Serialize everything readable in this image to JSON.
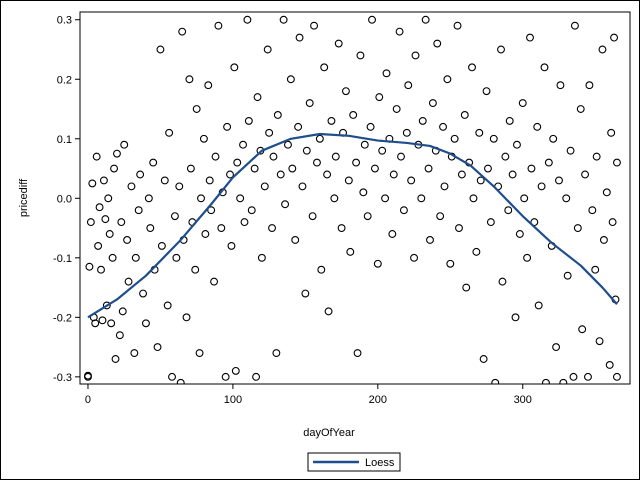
{
  "chart_data": {
    "type": "scatter",
    "xlabel": "dayOfYear",
    "ylabel": "pricediff",
    "xlim": [
      -5.5,
      374
    ],
    "ylim": [
      -0.312,
      0.313
    ],
    "xticks": [
      0,
      100,
      200,
      300
    ],
    "xtick_labels": [
      "0",
      "100",
      "200",
      "300"
    ],
    "yticks": [
      -0.3,
      -0.2,
      -0.1,
      0.0,
      0.1,
      0.2,
      0.3
    ],
    "ytick_labels": [
      "-0.3",
      "-0.2",
      "-0.1",
      "0.0",
      "0.1",
      "0.2",
      "0.3"
    ],
    "grid": false,
    "legend": {
      "placement": "bottom",
      "entries": [
        "Loess"
      ]
    },
    "colors": {
      "points": "#000000",
      "loess": "#1f4e8c"
    },
    "loess": {
      "name": "Loess",
      "x": [
        0,
        20,
        40,
        64,
        85,
        100,
        120,
        140,
        160,
        180,
        200,
        220,
        236,
        250,
        264,
        280,
        300,
        320,
        340,
        355,
        365
      ],
      "y": [
        -0.2,
        -0.17,
        -0.13,
        -0.07,
        -0.01,
        0.035,
        0.08,
        0.1,
        0.108,
        0.105,
        0.097,
        0.093,
        0.088,
        0.075,
        0.055,
        0.02,
        -0.03,
        -0.075,
        -0.113,
        -0.15,
        -0.178
      ]
    },
    "points": [
      [
        0,
        -0.3
      ],
      [
        0,
        -0.298
      ],
      [
        1,
        -0.115
      ],
      [
        2,
        -0.04
      ],
      [
        3,
        0.025
      ],
      [
        4,
        -0.2
      ],
      [
        5,
        -0.21
      ],
      [
        6,
        0.07
      ],
      [
        7,
        -0.08
      ],
      [
        8,
        -0.015
      ],
      [
        9,
        -0.12
      ],
      [
        10,
        -0.205
      ],
      [
        11,
        0.03
      ],
      [
        12,
        -0.035
      ],
      [
        13,
        -0.18
      ],
      [
        14,
        0.0
      ],
      [
        15,
        -0.06
      ],
      [
        16,
        -0.21
      ],
      [
        17,
        -0.1
      ],
      [
        18,
        0.05
      ],
      [
        19,
        -0.27
      ],
      [
        20,
        0.075
      ],
      [
        22,
        -0.23
      ],
      [
        23,
        -0.04
      ],
      [
        24,
        -0.19
      ],
      [
        25,
        0.09
      ],
      [
        27,
        -0.07
      ],
      [
        28,
        -0.14
      ],
      [
        30,
        0.02
      ],
      [
        32,
        -0.26
      ],
      [
        33,
        -0.1
      ],
      [
        35,
        -0.02
      ],
      [
        36,
        0.04
      ],
      [
        38,
        -0.16
      ],
      [
        40,
        -0.21
      ],
      [
        42,
        0.0
      ],
      [
        43,
        -0.05
      ],
      [
        45,
        0.06
      ],
      [
        46,
        -0.12
      ],
      [
        48,
        -0.25
      ],
      [
        50,
        0.25
      ],
      [
        51,
        -0.08
      ],
      [
        53,
        0.03
      ],
      [
        55,
        -0.18
      ],
      [
        56,
        0.11
      ],
      [
        58,
        -0.3
      ],
      [
        60,
        -0.03
      ],
      [
        61,
        -0.1
      ],
      [
        63,
        0.02
      ],
      [
        64,
        -0.31
      ],
      [
        65,
        0.28
      ],
      [
        66,
        -0.07
      ],
      [
        68,
        -0.2
      ],
      [
        70,
        0.2
      ],
      [
        71,
        0.05
      ],
      [
        72,
        -0.04
      ],
      [
        74,
        -0.12
      ],
      [
        75,
        0.15
      ],
      [
        77,
        -0.26
      ],
      [
        78,
        0.0
      ],
      [
        80,
        0.1
      ],
      [
        81,
        -0.06
      ],
      [
        83,
        0.19
      ],
      [
        84,
        0.03
      ],
      [
        85,
        -0.02
      ],
      [
        87,
        -0.14
      ],
      [
        88,
        0.07
      ],
      [
        90,
        0.29
      ],
      [
        92,
        -0.05
      ],
      [
        93,
        0.01
      ],
      [
        95,
        -0.3
      ],
      [
        96,
        0.12
      ],
      [
        98,
        0.04
      ],
      [
        99,
        -0.08
      ],
      [
        101,
        0.22
      ],
      [
        102,
        -0.29
      ],
      [
        103,
        0.06
      ],
      [
        105,
        0.0
      ],
      [
        107,
        0.09
      ],
      [
        108,
        -0.04
      ],
      [
        110,
        0.3
      ],
      [
        111,
        0.13
      ],
      [
        113,
        -0.02
      ],
      [
        115,
        0.05
      ],
      [
        116,
        -0.3
      ],
      [
        117,
        0.17
      ],
      [
        119,
        0.08
      ],
      [
        120,
        -0.1
      ],
      [
        122,
        0.02
      ],
      [
        124,
        0.25
      ],
      [
        125,
        0.11
      ],
      [
        127,
        -0.05
      ],
      [
        128,
        0.07
      ],
      [
        130,
        -0.26
      ],
      [
        131,
        0.14
      ],
      [
        133,
        0.04
      ],
      [
        135,
        0.3
      ],
      [
        136,
        -0.01
      ],
      [
        138,
        0.09
      ],
      [
        140,
        0.2
      ],
      [
        141,
        0.05
      ],
      [
        143,
        -0.07
      ],
      [
        145,
        0.12
      ],
      [
        146,
        0.27
      ],
      [
        148,
        0.02
      ],
      [
        150,
        -0.16
      ],
      [
        151,
        0.08
      ],
      [
        153,
        0.16
      ],
      [
        155,
        -0.03
      ],
      [
        156,
        0.29
      ],
      [
        158,
        0.06
      ],
      [
        160,
        0.1
      ],
      [
        161,
        -0.12
      ],
      [
        163,
        0.22
      ],
      [
        165,
        0.04
      ],
      [
        166,
        -0.19
      ],
      [
        168,
        0.13
      ],
      [
        170,
        0.0
      ],
      [
        171,
        0.07
      ],
      [
        173,
        0.26
      ],
      [
        175,
        -0.05
      ],
      [
        176,
        0.11
      ],
      [
        178,
        0.18
      ],
      [
        180,
        0.03
      ],
      [
        181,
        -0.09
      ],
      [
        183,
        0.14
      ],
      [
        185,
        0.06
      ],
      [
        186,
        -0.26
      ],
      [
        188,
        0.24
      ],
      [
        190,
        0.01
      ],
      [
        191,
        0.09
      ],
      [
        193,
        -0.03
      ],
      [
        195,
        0.12
      ],
      [
        196,
        0.3
      ],
      [
        198,
        0.05
      ],
      [
        200,
        -0.11
      ],
      [
        201,
        0.17
      ],
      [
        203,
        0.08
      ],
      [
        205,
        0.0
      ],
      [
        206,
        0.21
      ],
      [
        208,
        0.1
      ],
      [
        210,
        -0.06
      ],
      [
        211,
        0.04
      ],
      [
        213,
        0.15
      ],
      [
        215,
        0.28
      ],
      [
        216,
        0.07
      ],
      [
        218,
        -0.02
      ],
      [
        220,
        0.11
      ],
      [
        221,
        0.19
      ],
      [
        223,
        0.03
      ],
      [
        225,
        -0.1
      ],
      [
        226,
        0.24
      ],
      [
        228,
        0.09
      ],
      [
        230,
        0.0
      ],
      [
        231,
        0.13
      ],
      [
        233,
        0.3
      ],
      [
        235,
        0.05
      ],
      [
        236,
        -0.07
      ],
      [
        238,
        0.16
      ],
      [
        240,
        0.08
      ],
      [
        241,
        0.26
      ],
      [
        243,
        -0.03
      ],
      [
        245,
        0.12
      ],
      [
        246,
        0.02
      ],
      [
        248,
        0.2
      ],
      [
        250,
        -0.11
      ],
      [
        251,
        0.07
      ],
      [
        253,
        0.1
      ],
      [
        255,
        0.29
      ],
      [
        256,
        -0.05
      ],
      [
        258,
        0.04
      ],
      [
        260,
        0.14
      ],
      [
        261,
        -0.15
      ],
      [
        263,
        0.06
      ],
      [
        265,
        0.22
      ],
      [
        266,
        0.0
      ],
      [
        268,
        -0.09
      ],
      [
        270,
        0.11
      ],
      [
        271,
        0.03
      ],
      [
        273,
        -0.27
      ],
      [
        275,
        0.18
      ],
      [
        276,
        0.05
      ],
      [
        278,
        -0.04
      ],
      [
        280,
        0.1
      ],
      [
        281,
        -0.31
      ],
      [
        283,
        0.02
      ],
      [
        285,
        0.25
      ],
      [
        286,
        -0.14
      ],
      [
        288,
        0.07
      ],
      [
        290,
        -0.02
      ],
      [
        291,
        0.13
      ],
      [
        293,
        0.04
      ],
      [
        295,
        -0.2
      ],
      [
        296,
        0.09
      ],
      [
        298,
        -0.06
      ],
      [
        300,
        0.16
      ],
      [
        301,
        0.0
      ],
      [
        303,
        -0.1
      ],
      [
        305,
        0.27
      ],
      [
        306,
        0.05
      ],
      [
        308,
        -0.04
      ],
      [
        310,
        0.12
      ],
      [
        311,
        -0.18
      ],
      [
        313,
        0.02
      ],
      [
        315,
        0.22
      ],
      [
        316,
        -0.31
      ],
      [
        318,
        0.06
      ],
      [
        320,
        -0.08
      ],
      [
        321,
        0.1
      ],
      [
        323,
        -0.25
      ],
      [
        325,
        0.03
      ],
      [
        326,
        0.19
      ],
      [
        328,
        -0.31
      ],
      [
        330,
        0.0
      ],
      [
        331,
        -0.13
      ],
      [
        333,
        0.08
      ],
      [
        335,
        -0.3
      ],
      [
        336,
        0.29
      ],
      [
        338,
        -0.05
      ],
      [
        340,
        0.15
      ],
      [
        341,
        -0.22
      ],
      [
        343,
        0.04
      ],
      [
        345,
        -0.3
      ],
      [
        346,
        0.19
      ],
      [
        348,
        -0.02
      ],
      [
        350,
        -0.12
      ],
      [
        351,
        0.07
      ],
      [
        353,
        -0.24
      ],
      [
        355,
        0.25
      ],
      [
        356,
        -0.07
      ],
      [
        358,
        0.01
      ],
      [
        360,
        -0.28
      ],
      [
        361,
        0.11
      ],
      [
        362,
        -0.04
      ],
      [
        363,
        0.27
      ],
      [
        364,
        -0.17
      ],
      [
        365,
        -0.3
      ],
      [
        365,
        0.06
      ]
    ]
  }
}
